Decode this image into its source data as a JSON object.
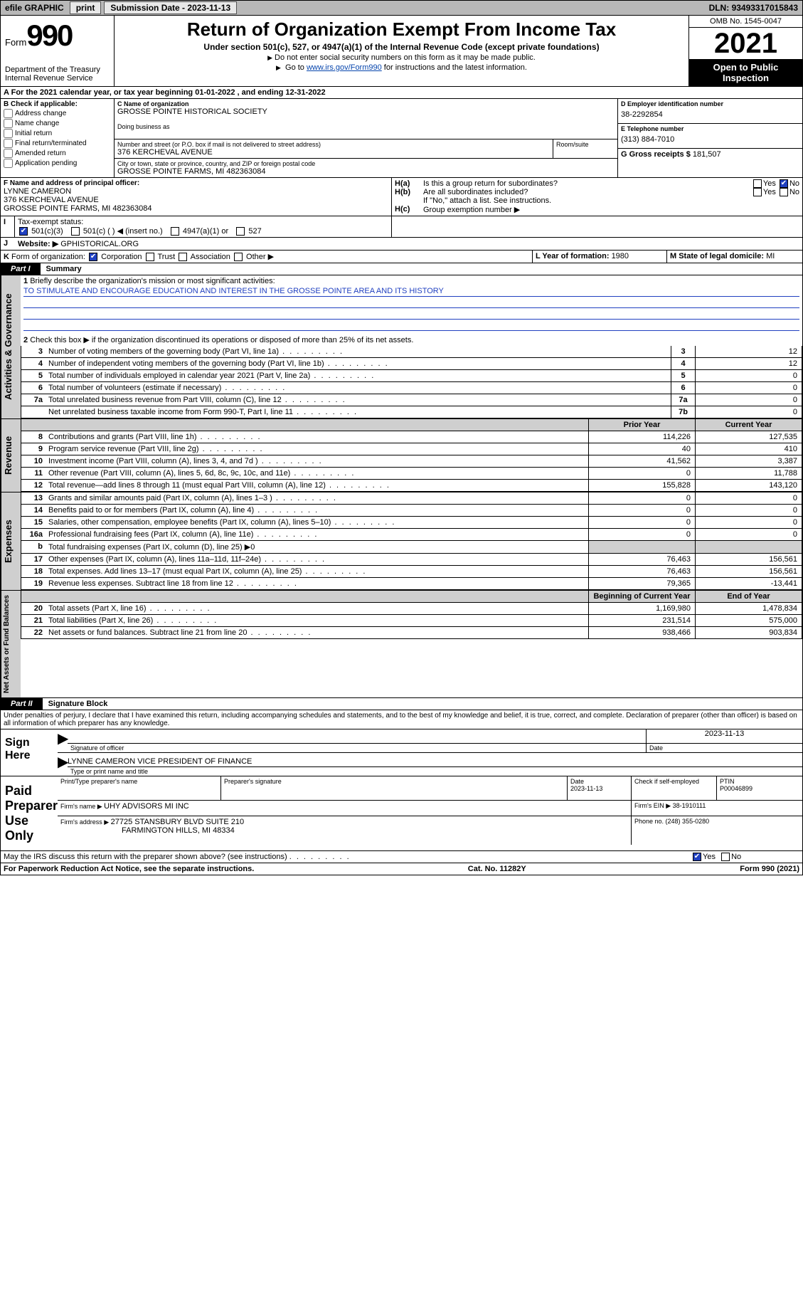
{
  "topbar": {
    "efile": "efile GRAPHIC",
    "print": "print",
    "sub_label": "Submission Date - ",
    "sub_date": "2023-11-13",
    "dln_label": "DLN: ",
    "dln": "93493317015843"
  },
  "header": {
    "form_word": "Form",
    "form_num": "990",
    "dept": "Department of the Treasury",
    "irs": "Internal Revenue Service",
    "title": "Return of Organization Exempt From Income Tax",
    "sub": "Under section 501(c), 527, or 4947(a)(1) of the Internal Revenue Code (except private foundations)",
    "note1": "Do not enter social security numbers on this form as it may be made public.",
    "note2_pre": "Go to ",
    "note2_link": "www.irs.gov/Form990",
    "note2_post": " for instructions and the latest information.",
    "omb": "OMB No. 1545-0047",
    "year": "2021",
    "inspect1": "Open to Public",
    "inspect2": "Inspection"
  },
  "line_a": {
    "text_pre": "For the 2021 calendar year, or tax year beginning ",
    "begin": "01-01-2022",
    "mid": " , and ending ",
    "end": "12-31-2022"
  },
  "box_b": {
    "title": "B Check if applicable:",
    "items": [
      "Address change",
      "Name change",
      "Initial return",
      "Final return/terminated",
      "Amended return",
      "Application pending"
    ]
  },
  "box_c": {
    "label": "C Name of organization",
    "name": "GROSSE POINTE HISTORICAL SOCIETY",
    "dba_label": "Doing business as",
    "street_label": "Number and street (or P.O. box if mail is not delivered to street address)",
    "room_label": "Room/suite",
    "street": "376 KERCHEVAL AVENUE",
    "city_label": "City or town, state or province, country, and ZIP or foreign postal code",
    "city": "GROSSE POINTE FARMS, MI  482363084"
  },
  "box_d": {
    "label": "D Employer identification number",
    "value": "38-2292854"
  },
  "box_e": {
    "label": "E Telephone number",
    "value": "(313) 884-7010"
  },
  "box_g": {
    "label": "G Gross receipts $ ",
    "value": "181,507"
  },
  "box_f": {
    "label": "F Name and address of principal officer:",
    "name": "LYNNE CAMERON",
    "street": "376 KERCHEVAL AVENUE",
    "city": "GROSSE POINTE FARMS, MI  482363084"
  },
  "box_h": {
    "ha": "Is this a group return for subordinates?",
    "hb": "Are all subordinates included?",
    "hnote": "If \"No,\" attach a list. See instructions.",
    "hc": "Group exemption number ▶",
    "yes": "Yes",
    "no": "No",
    "ha_label": "H(a)",
    "hb_label": "H(b)",
    "hc_label": "H(c)"
  },
  "line_i": {
    "label": "Tax-exempt status:",
    "opts": [
      "501(c)(3)",
      "501(c) (   ) ◀ (insert no.)",
      "4947(a)(1) or",
      "527"
    ],
    "letter": "I"
  },
  "line_j": {
    "letter": "J",
    "label": "Website: ▶",
    "value": "GPHISTORICAL.ORG"
  },
  "line_k": {
    "letter": "K",
    "label": "Form of organization:",
    "opts": [
      "Corporation",
      "Trust",
      "Association",
      "Other ▶"
    ]
  },
  "line_l": {
    "label": "L Year of formation: ",
    "value": "1980"
  },
  "line_m": {
    "label": "M State of legal domicile: ",
    "value": "MI"
  },
  "part1": {
    "tab": "Part I",
    "title": "Summary"
  },
  "summary": {
    "q1": "Briefly describe the organization's mission or most significant activities:",
    "mission": "TO STIMULATE AND ENCOURAGE EDUCATION AND INTEREST IN THE GROSSE POINTE AREA AND ITS HISTORY",
    "q2": "Check this box ▶         if the organization discontinued its operations or disposed of more than 25% of its net assets.",
    "rows_a": [
      {
        "n": "3",
        "t": "Number of voting members of the governing body (Part VI, line 1a)",
        "box": "3",
        "v": "12"
      },
      {
        "n": "4",
        "t": "Number of independent voting members of the governing body (Part VI, line 1b)",
        "box": "4",
        "v": "12"
      },
      {
        "n": "5",
        "t": "Total number of individuals employed in calendar year 2021 (Part V, line 2a)",
        "box": "5",
        "v": "0"
      },
      {
        "n": "6",
        "t": "Total number of volunteers (estimate if necessary)",
        "box": "6",
        "v": "0"
      },
      {
        "n": "7a",
        "t": "Total unrelated business revenue from Part VIII, column (C), line 12",
        "box": "7a",
        "v": "0"
      },
      {
        "n": "",
        "t": "Net unrelated business taxable income from Form 990-T, Part I, line 11",
        "box": "7b",
        "v": "0"
      }
    ],
    "col_prior": "Prior Year",
    "col_curr": "Current Year",
    "col_begin": "Beginning of Current Year",
    "col_end": "End of Year",
    "rev": [
      {
        "n": "8",
        "t": "Contributions and grants (Part VIII, line 1h)",
        "p": "114,226",
        "c": "127,535"
      },
      {
        "n": "9",
        "t": "Program service revenue (Part VIII, line 2g)",
        "p": "40",
        "c": "410"
      },
      {
        "n": "10",
        "t": "Investment income (Part VIII, column (A), lines 3, 4, and 7d )",
        "p": "41,562",
        "c": "3,387"
      },
      {
        "n": "11",
        "t": "Other revenue (Part VIII, column (A), lines 5, 6d, 8c, 9c, 10c, and 11e)",
        "p": "0",
        "c": "11,788"
      },
      {
        "n": "12",
        "t": "Total revenue—add lines 8 through 11 (must equal Part VIII, column (A), line 12)",
        "p": "155,828",
        "c": "143,120"
      }
    ],
    "exp": [
      {
        "n": "13",
        "t": "Grants and similar amounts paid (Part IX, column (A), lines 1–3 )",
        "p": "0",
        "c": "0"
      },
      {
        "n": "14",
        "t": "Benefits paid to or for members (Part IX, column (A), line 4)",
        "p": "0",
        "c": "0"
      },
      {
        "n": "15",
        "t": "Salaries, other compensation, employee benefits (Part IX, column (A), lines 5–10)",
        "p": "0",
        "c": "0"
      },
      {
        "n": "16a",
        "t": "Professional fundraising fees (Part IX, column (A), line 11e)",
        "p": "0",
        "c": "0"
      },
      {
        "n": "b",
        "t": "Total fundraising expenses (Part IX, column (D), line 25) ▶0",
        "p": "",
        "c": "",
        "shade": true
      },
      {
        "n": "17",
        "t": "Other expenses (Part IX, column (A), lines 11a–11d, 11f–24e)",
        "p": "76,463",
        "c": "156,561"
      },
      {
        "n": "18",
        "t": "Total expenses. Add lines 13–17 (must equal Part IX, column (A), line 25)",
        "p": "76,463",
        "c": "156,561"
      },
      {
        "n": "19",
        "t": "Revenue less expenses. Subtract line 18 from line 12",
        "p": "79,365",
        "c": "-13,441"
      }
    ],
    "net": [
      {
        "n": "20",
        "t": "Total assets (Part X, line 16)",
        "p": "1,169,980",
        "c": "1,478,834"
      },
      {
        "n": "21",
        "t": "Total liabilities (Part X, line 26)",
        "p": "231,514",
        "c": "575,000"
      },
      {
        "n": "22",
        "t": "Net assets or fund balances. Subtract line 21 from line 20",
        "p": "938,466",
        "c": "903,834"
      }
    ],
    "vlabels": {
      "ag": "Activities & Governance",
      "rev": "Revenue",
      "exp": "Expenses",
      "net": "Net Assets or Fund Balances"
    }
  },
  "part2": {
    "tab": "Part II",
    "title": "Signature Block"
  },
  "sig": {
    "penalty": "Under penalties of perjury, I declare that I have examined this return, including accompanying schedules and statements, and to the best of my knowledge and belief, it is true, correct, and complete. Declaration of preparer (other than officer) is based on all information of which preparer has any knowledge.",
    "sign_here": "Sign Here",
    "sig_officer": "Signature of officer",
    "date_label": "Date",
    "date": "2023-11-13",
    "name_title": "LYNNE CAMERON  VICE PRESIDENT OF FINANCE",
    "type_label": "Type or print name and title",
    "paid": "Paid Preparer Use Only",
    "pt_name_label": "Print/Type preparer's name",
    "pt_sig_label": "Preparer's signature",
    "pt_date": "2023-11-13",
    "check_if": "Check         if self-employed",
    "ptin_label": "PTIN",
    "ptin": "P00046899",
    "firm_name_label": "Firm's name    ▶ ",
    "firm_name": "UHY ADVISORS MI INC",
    "firm_ein_label": "Firm's EIN ▶ ",
    "firm_ein": "38-1910111",
    "firm_addr_label": "Firm's address ▶ ",
    "firm_addr1": "27725 STANSBURY BLVD SUITE 210",
    "firm_addr2": "FARMINGTON HILLS, MI  48334",
    "phone_label": "Phone no. ",
    "phone": "(248) 355-0280",
    "discuss": "May the IRS discuss this return with the preparer shown above? (see instructions)"
  },
  "footer": {
    "left": "For Paperwork Reduction Act Notice, see the separate instructions.",
    "mid": "Cat. No. 11282Y",
    "right": "Form 990 (2021)"
  },
  "colors": {
    "link": "#0645ad",
    "shade": "#cfcfcf",
    "rule": "#000000",
    "mission_rule": "#2040c0"
  }
}
